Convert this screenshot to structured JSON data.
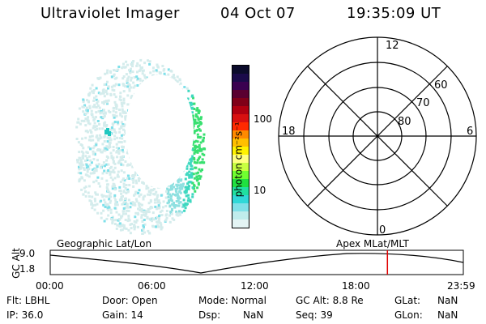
{
  "header": {
    "title": "Ultraviolet Imager",
    "date": "04 Oct 07",
    "time": "19:35:09 UT"
  },
  "colorbar": {
    "label": "photon cm⁻²s⁻¹",
    "ticks": [
      "100",
      "10"
    ],
    "colors": [
      "#0b0b2b",
      "#1a0a4a",
      "#3a0050",
      "#5a0030",
      "#800018",
      "#b00010",
      "#d81010",
      "#ff2a00",
      "#ff8a00",
      "#ffbf00",
      "#fff200",
      "#ffff80",
      "#c8ff40",
      "#70ff30",
      "#20e040",
      "#20e0a0",
      "#30d8d8",
      "#80e0e8",
      "#c0ecec",
      "#e4f4f4"
    ]
  },
  "polar": {
    "lt_labels": [
      "12",
      "18",
      "6",
      "0"
    ],
    "lat_labels": [
      "60",
      "70",
      "80"
    ]
  },
  "timeline": {
    "left_label": "Geographic Lat/Lon",
    "right_label": "Apex MLat/MLT",
    "axis_title": "GC Alt",
    "ytick_top": "9.0",
    "ytick_bottom": "1.8",
    "xticks": [
      "00:00",
      "06:00",
      "12:00",
      "18:00",
      "23:59"
    ],
    "cursor_color": "#e00000",
    "cursor_time_hours": 19.59
  },
  "info": {
    "flt": "Flt: LBHL",
    "door": "Door: Open",
    "mode": "Mode: Normal",
    "gcalt": "GC Alt: 8.8 Re",
    "glat_label": "GLat:",
    "glat_val": "NaN",
    "ip": "IP: 36.0",
    "gain": "Gain: 14",
    "dsp_label": "Dsp:",
    "dsp_val": "NaN",
    "seq": "Seq: 39",
    "glon_label": "GLon:",
    "glon_val": "NaN"
  }
}
